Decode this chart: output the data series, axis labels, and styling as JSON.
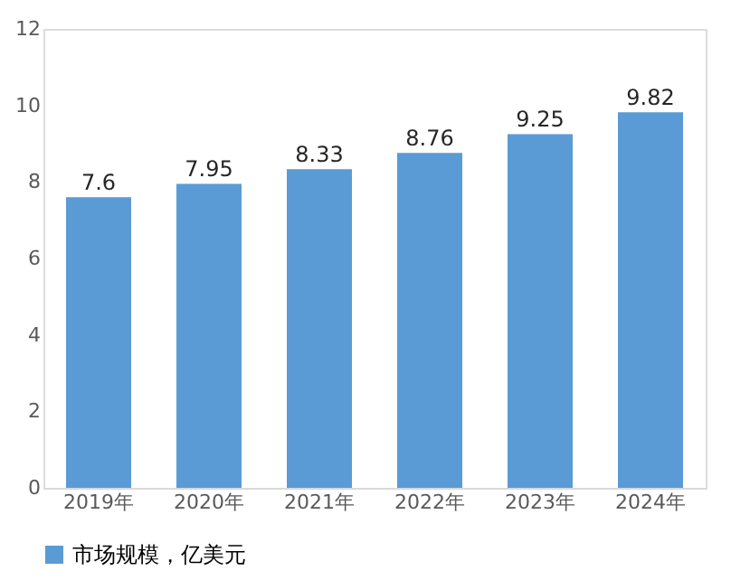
{
  "chart_data": {
    "type": "bar",
    "categories": [
      "2019年",
      "2020年",
      "2021年",
      "2022年",
      "2023年",
      "2024年"
    ],
    "series": [
      {
        "name": "市场规模，亿美元",
        "color": "#5b9bd5",
        "values": [
          7.6,
          7.95,
          8.33,
          8.76,
          9.25,
          9.82
        ]
      }
    ],
    "ylim": [
      0,
      12
    ],
    "yticks": [
      0,
      2,
      4,
      6,
      8,
      10,
      12
    ],
    "data_labels": true,
    "grid": false,
    "legend": "bottom"
  }
}
